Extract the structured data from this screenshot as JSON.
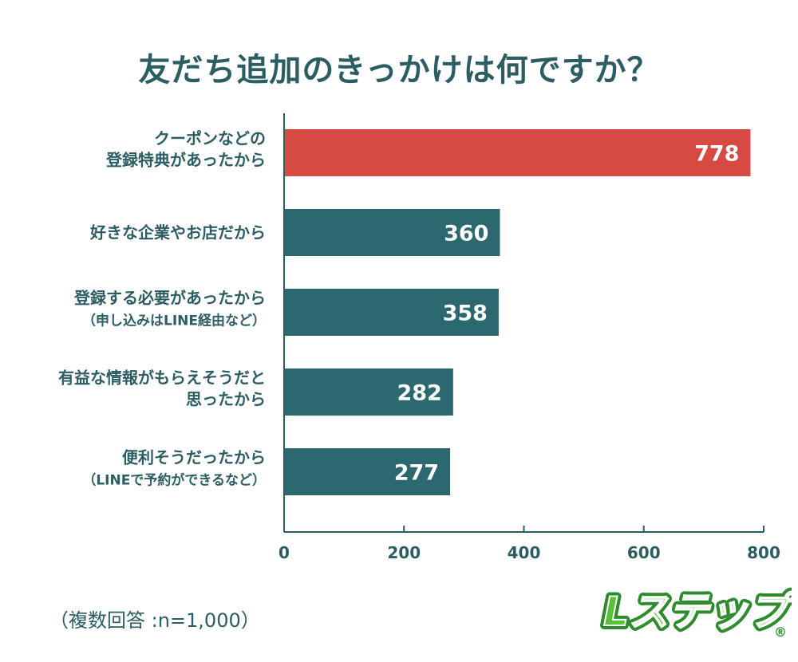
{
  "title": "友だち追加のきっかけは何ですか？",
  "sample_note": "（複数回答 :n=1,000）",
  "logo": {
    "text": "Lステップ",
    "mark": "®"
  },
  "colors": {
    "highlight": "#d64a43",
    "bar": "#2b686f",
    "text": "#2c5d63",
    "axis": "#2c5d63"
  },
  "chart_data": {
    "type": "bar",
    "orientation": "horizontal",
    "title": "友だち追加のきっかけは何ですか？",
    "categories": [
      [
        "クーポンなどの",
        "登録特典があったから"
      ],
      [
        "好きな企業やお店だから"
      ],
      [
        "登録する必要があったから",
        "（申し込みはLINE経由など）"
      ],
      [
        "有益な情報がもらえそうだと",
        "思ったから"
      ],
      [
        "便利そうだったから",
        "（LINEで予約ができるなど）"
      ]
    ],
    "values": [
      778,
      360,
      358,
      282,
      277
    ],
    "highlight_index": 0,
    "xlim": [
      0,
      800
    ],
    "xticks": [
      0,
      200,
      400,
      600,
      800
    ],
    "grid": false
  }
}
